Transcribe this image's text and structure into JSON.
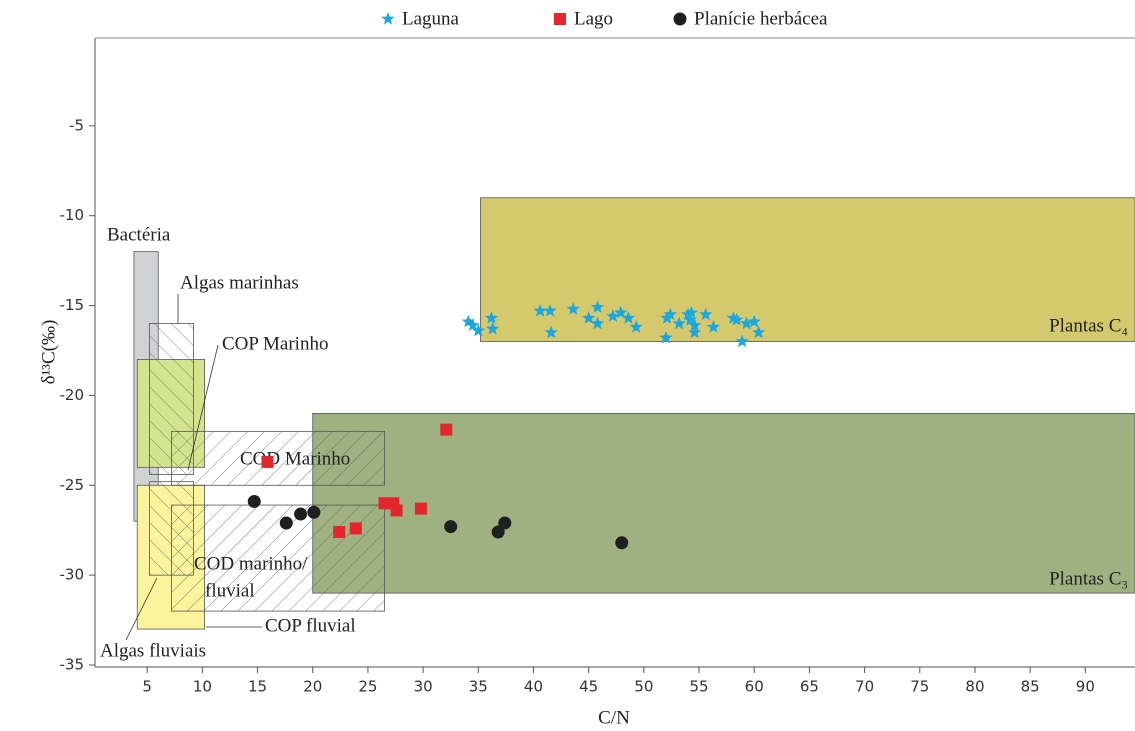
{
  "chart_data": {
    "type": "scatter",
    "x_label": "C/N",
    "y_label": "δ¹³C(‰)",
    "xlim": [
      0,
      94.5
    ],
    "ylim": [
      -35,
      0
    ],
    "xticks": [
      5,
      10,
      15,
      20,
      25,
      30,
      35,
      40,
      45,
      50,
      55,
      60,
      65,
      70,
      75,
      80,
      85,
      90
    ],
    "yticks": [
      -35,
      -30,
      -25,
      -20,
      -15,
      -10,
      -5
    ],
    "legend": "top",
    "regions": [
      {
        "label": [
          "Plantas C₃"
        ],
        "x": [
          20,
          94.5
        ],
        "y": [
          -31,
          -21
        ],
        "fill": "#9fb180"
      },
      {
        "label": [
          "Plantas C₄"
        ],
        "x": [
          35.2,
          94.5
        ],
        "y": [
          -17,
          -9
        ],
        "fill": "#d5c96d"
      },
      {
        "label": [
          "Bactéria"
        ],
        "x": [
          3.8,
          6
        ],
        "y": [
          -27,
          -12
        ],
        "fill": "#d1d2d4"
      },
      {
        "label": [
          "COP Marinho"
        ],
        "x": [
          4.1,
          10.2
        ],
        "y": [
          -24,
          -18
        ],
        "fill": "#d4e38e"
      },
      {
        "label": [
          "Algas fluviais"
        ],
        "x": [
          4.1,
          10.2
        ],
        "y": [
          -33,
          -25
        ],
        "fill": "#fbf49c"
      },
      {
        "label": [
          "Algas marinhas"
        ],
        "x": [
          5.2,
          9.2
        ],
        "y": [
          -24.4,
          -16
        ],
        "hatch": "\\"
      },
      {
        "label": [
          "COD Marinho"
        ],
        "x": [
          7.2,
          26.5
        ],
        "y": [
          -25,
          -22
        ],
        "hatch": "/"
      },
      {
        "label": [
          "COD marinho/",
          "fluvial"
        ],
        "x": [
          5.2,
          9.2
        ],
        "y": [
          -30,
          -24.8
        ],
        "hatch": "\\"
      },
      {
        "label": [
          "COP fluvial"
        ],
        "x": [
          7.2,
          26.5
        ],
        "y": [
          -32,
          -26.1
        ],
        "hatch": "/"
      }
    ],
    "series": [
      {
        "name": "Laguna",
        "color": "#1aa7e0",
        "marker": "star",
        "x": [
          34.1,
          34.5,
          35,
          36.2,
          36.3,
          40.6,
          41.5,
          41.6,
          43.6,
          45,
          45.8,
          45.8,
          47.2,
          47.9,
          48.6,
          49.3,
          52,
          52.1,
          52.4,
          53.2,
          54,
          54.2,
          54.3,
          54.6,
          54.6,
          55.6,
          56.3,
          58.1,
          58.4,
          58.9,
          59.3,
          60,
          60.4
        ],
        "values": [
          -15.9,
          -16.1,
          -16.4,
          -15.7,
          -16.3,
          -15.3,
          -15.3,
          -16.5,
          -15.2,
          -15.7,
          -15.1,
          -16,
          -15.6,
          -15.4,
          -15.7,
          -16.2,
          -16.8,
          -15.7,
          -15.5,
          -16,
          -15.5,
          -15.8,
          -15.4,
          -16.1,
          -16.5,
          -15.5,
          -16.2,
          -15.7,
          -15.8,
          -17,
          -16,
          -15.9,
          -16.5
        ]
      },
      {
        "name": "Lago",
        "color": "#e3262b",
        "marker": "square",
        "x": [
          15.9,
          22.4,
          23.9,
          26.5,
          27.3,
          27.6,
          29.8,
          32.1
        ],
        "values": [
          -23.7,
          -27.6,
          -27.4,
          -26,
          -26,
          -26.4,
          -26.3,
          -21.9
        ]
      },
      {
        "name": "Planície herbácea",
        "color": "#1f1f1f",
        "marker": "circle",
        "x": [
          14.7,
          17.6,
          18.9,
          20.1,
          32.5,
          36.8,
          37.4,
          48
        ],
        "values": [
          -25.9,
          -27.1,
          -26.6,
          -26.5,
          -27.3,
          -27.6,
          -27.1,
          -28.2
        ]
      }
    ]
  }
}
